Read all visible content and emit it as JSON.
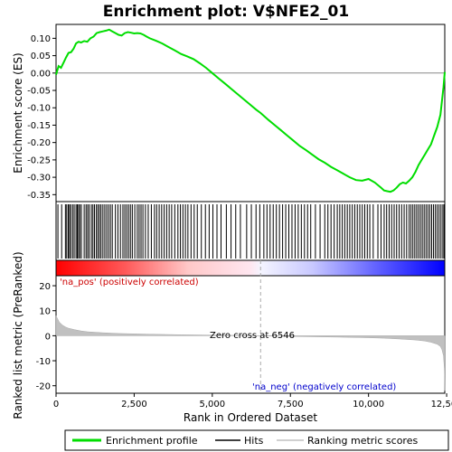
{
  "chart_data": {
    "type": "line",
    "title": "Enrichment plot: V$NFE2_01",
    "es_panel": {
      "ylabel": "Enrichment score (ES)",
      "ylim": [
        -0.37,
        0.14
      ],
      "yticks": [
        0.1,
        0.05,
        0.0,
        -0.05,
        -0.1,
        -0.15,
        -0.2,
        -0.25,
        -0.3,
        -0.35
      ],
      "ytick_labels": [
        "0.10",
        "0.05",
        "0.00",
        "-0.05",
        "-0.10",
        "-0.15",
        "-0.20",
        "-0.25",
        "-0.30",
        "-0.35"
      ],
      "series": [
        {
          "name": "Enrichment profile",
          "color": "#00dd00",
          "x": [
            0,
            80,
            160,
            240,
            320,
            400,
            480,
            560,
            640,
            720,
            800,
            900,
            1000,
            1100,
            1200,
            1300,
            1400,
            1500,
            1600,
            1700,
            1800,
            1900,
            2000,
            2100,
            2200,
            2300,
            2400,
            2500,
            2600,
            2700,
            2800,
            2900,
            3000,
            3200,
            3400,
            3600,
            3800,
            4000,
            4200,
            4400,
            4600,
            4800,
            5000,
            5200,
            5400,
            5600,
            5800,
            6000,
            6200,
            6400,
            6546,
            6800,
            7000,
            7200,
            7400,
            7600,
            7800,
            8000,
            8200,
            8400,
            8600,
            8800,
            9000,
            9200,
            9400,
            9600,
            9800,
            10000,
            10200,
            10400,
            10500,
            10600,
            10700,
            10800,
            10900,
            11000,
            11100,
            11200,
            11300,
            11400,
            11500,
            11600,
            11700,
            11800,
            11900,
            12000,
            12100,
            12200,
            12300,
            12350,
            12400,
            12440
          ],
          "y": [
            -0.005,
            0.02,
            0.015,
            0.03,
            0.045,
            0.058,
            0.06,
            0.07,
            0.085,
            0.09,
            0.088,
            0.092,
            0.09,
            0.1,
            0.105,
            0.115,
            0.118,
            0.12,
            0.122,
            0.125,
            0.12,
            0.115,
            0.11,
            0.108,
            0.115,
            0.118,
            0.116,
            0.114,
            0.115,
            0.114,
            0.11,
            0.105,
            0.1,
            0.093,
            0.085,
            0.075,
            0.065,
            0.055,
            0.048,
            0.04,
            0.028,
            0.015,
            0.0,
            -0.015,
            -0.03,
            -0.045,
            -0.06,
            -0.075,
            -0.09,
            -0.105,
            -0.115,
            -0.135,
            -0.15,
            -0.165,
            -0.18,
            -0.195,
            -0.21,
            -0.222,
            -0.235,
            -0.248,
            -0.258,
            -0.27,
            -0.28,
            -0.29,
            -0.3,
            -0.308,
            -0.31,
            -0.305,
            -0.315,
            -0.33,
            -0.338,
            -0.34,
            -0.342,
            -0.338,
            -0.33,
            -0.32,
            -0.315,
            -0.318,
            -0.31,
            -0.3,
            -0.285,
            -0.265,
            -0.25,
            -0.235,
            -0.22,
            -0.205,
            -0.18,
            -0.155,
            -0.12,
            -0.08,
            -0.04,
            0.003
          ]
        }
      ],
      "hits": {
        "name": "Hits",
        "positions": [
          60,
          180,
          300,
          340,
          390,
          430,
          470,
          530,
          580,
          640,
          680,
          720,
          760,
          810,
          900,
          960,
          1010,
          1060,
          1130,
          1180,
          1230,
          1290,
          1340,
          1390,
          1440,
          1500,
          1560,
          1620,
          1680,
          1740,
          1800,
          1900,
          1980,
          2060,
          2140,
          2200,
          2260,
          2320,
          2380,
          2440,
          2520,
          2600,
          2660,
          2720,
          2780,
          2860,
          2950,
          3050,
          3150,
          3220,
          3300,
          3380,
          3460,
          3540,
          3620,
          3700,
          3800,
          3900,
          3980,
          4060,
          4140,
          4220,
          4320,
          4420,
          4520,
          4650,
          4780,
          4900,
          5020,
          5150,
          5280,
          5450,
          5600,
          5750,
          5900,
          6100,
          6250,
          6400,
          6520,
          6650,
          6750,
          6850,
          6950,
          7050,
          7150,
          7250,
          7350,
          7450,
          7550,
          7650,
          7750,
          7850,
          7950,
          8050,
          8150,
          8300,
          8450,
          8600,
          8700,
          8800,
          8900,
          9000,
          9080,
          9160,
          9240,
          9320,
          9400,
          9480,
          9560,
          9640,
          9720,
          9800,
          9880,
          9960,
          10040,
          10150,
          10300,
          10400,
          10500,
          10580,
          10660,
          10740,
          10820,
          10900,
          10980,
          11060,
          11140,
          11220,
          11300,
          11360,
          11420,
          11480,
          11540,
          11600,
          11660,
          11720,
          11780,
          11840,
          11900,
          11960,
          12020,
          12080,
          12140,
          12200,
          12260,
          12320,
          12380,
          12420
        ]
      }
    },
    "rank_panel": {
      "ylabel": "Ranked list metric (PreRanked)",
      "xlabel": "Rank in Ordered Dataset",
      "ylim": [
        -23,
        24
      ],
      "yticks": [
        20,
        10,
        0,
        -10,
        -20
      ],
      "ytick_labels": [
        "20",
        "10",
        "0",
        "-10",
        "-20"
      ],
      "series": [
        {
          "name": "Ranking metric scores",
          "color": "#c0c0c0",
          "x": [
            0,
            50,
            100,
            200,
            300,
            400,
            600,
            800,
            1000,
            1500,
            2000,
            3000,
            4000,
            5000,
            6000,
            6546,
            7000,
            8000,
            9000,
            10000,
            10500,
            11000,
            11500,
            11800,
            12000,
            12200,
            12300,
            12350,
            12400,
            12430,
            12440
          ],
          "y": [
            8.0,
            6.8,
            5.5,
            4.3,
            3.5,
            3.0,
            2.4,
            1.9,
            1.6,
            1.2,
            0.9,
            0.6,
            0.4,
            0.25,
            0.1,
            0.0,
            -0.15,
            -0.35,
            -0.55,
            -0.8,
            -1.0,
            -1.3,
            -1.7,
            -2.1,
            -2.6,
            -3.4,
            -4.3,
            -5.6,
            -8.0,
            -14.0,
            -22.0
          ]
        }
      ],
      "zero_cross_label": "Zero cross at 6546",
      "zero_cross": 6546,
      "pos_label": "'na_pos' (positively correlated)",
      "neg_label": "'na_neg' (negatively correlated)"
    },
    "xlim": [
      0,
      12440
    ],
    "xticks": [
      0,
      2500,
      5000,
      7500,
      10000,
      12500
    ],
    "xtick_labels": [
      "0",
      "2,500",
      "5,000",
      "7,500",
      "10,000",
      "12,500"
    ],
    "legend": {
      "placement": "bottom",
      "entries": [
        "Enrichment profile",
        "Hits",
        "Ranking metric scores"
      ]
    },
    "colors": {
      "profile": "#00dd00",
      "hits": "#000000",
      "metric": "#c0c0c0",
      "pos_label": "#cc0000",
      "neg_label": "#0000cc",
      "zero_cross_line": "#aaaaaa",
      "bar_red": "#ff0000",
      "bar_blue": "#0000ff"
    }
  }
}
